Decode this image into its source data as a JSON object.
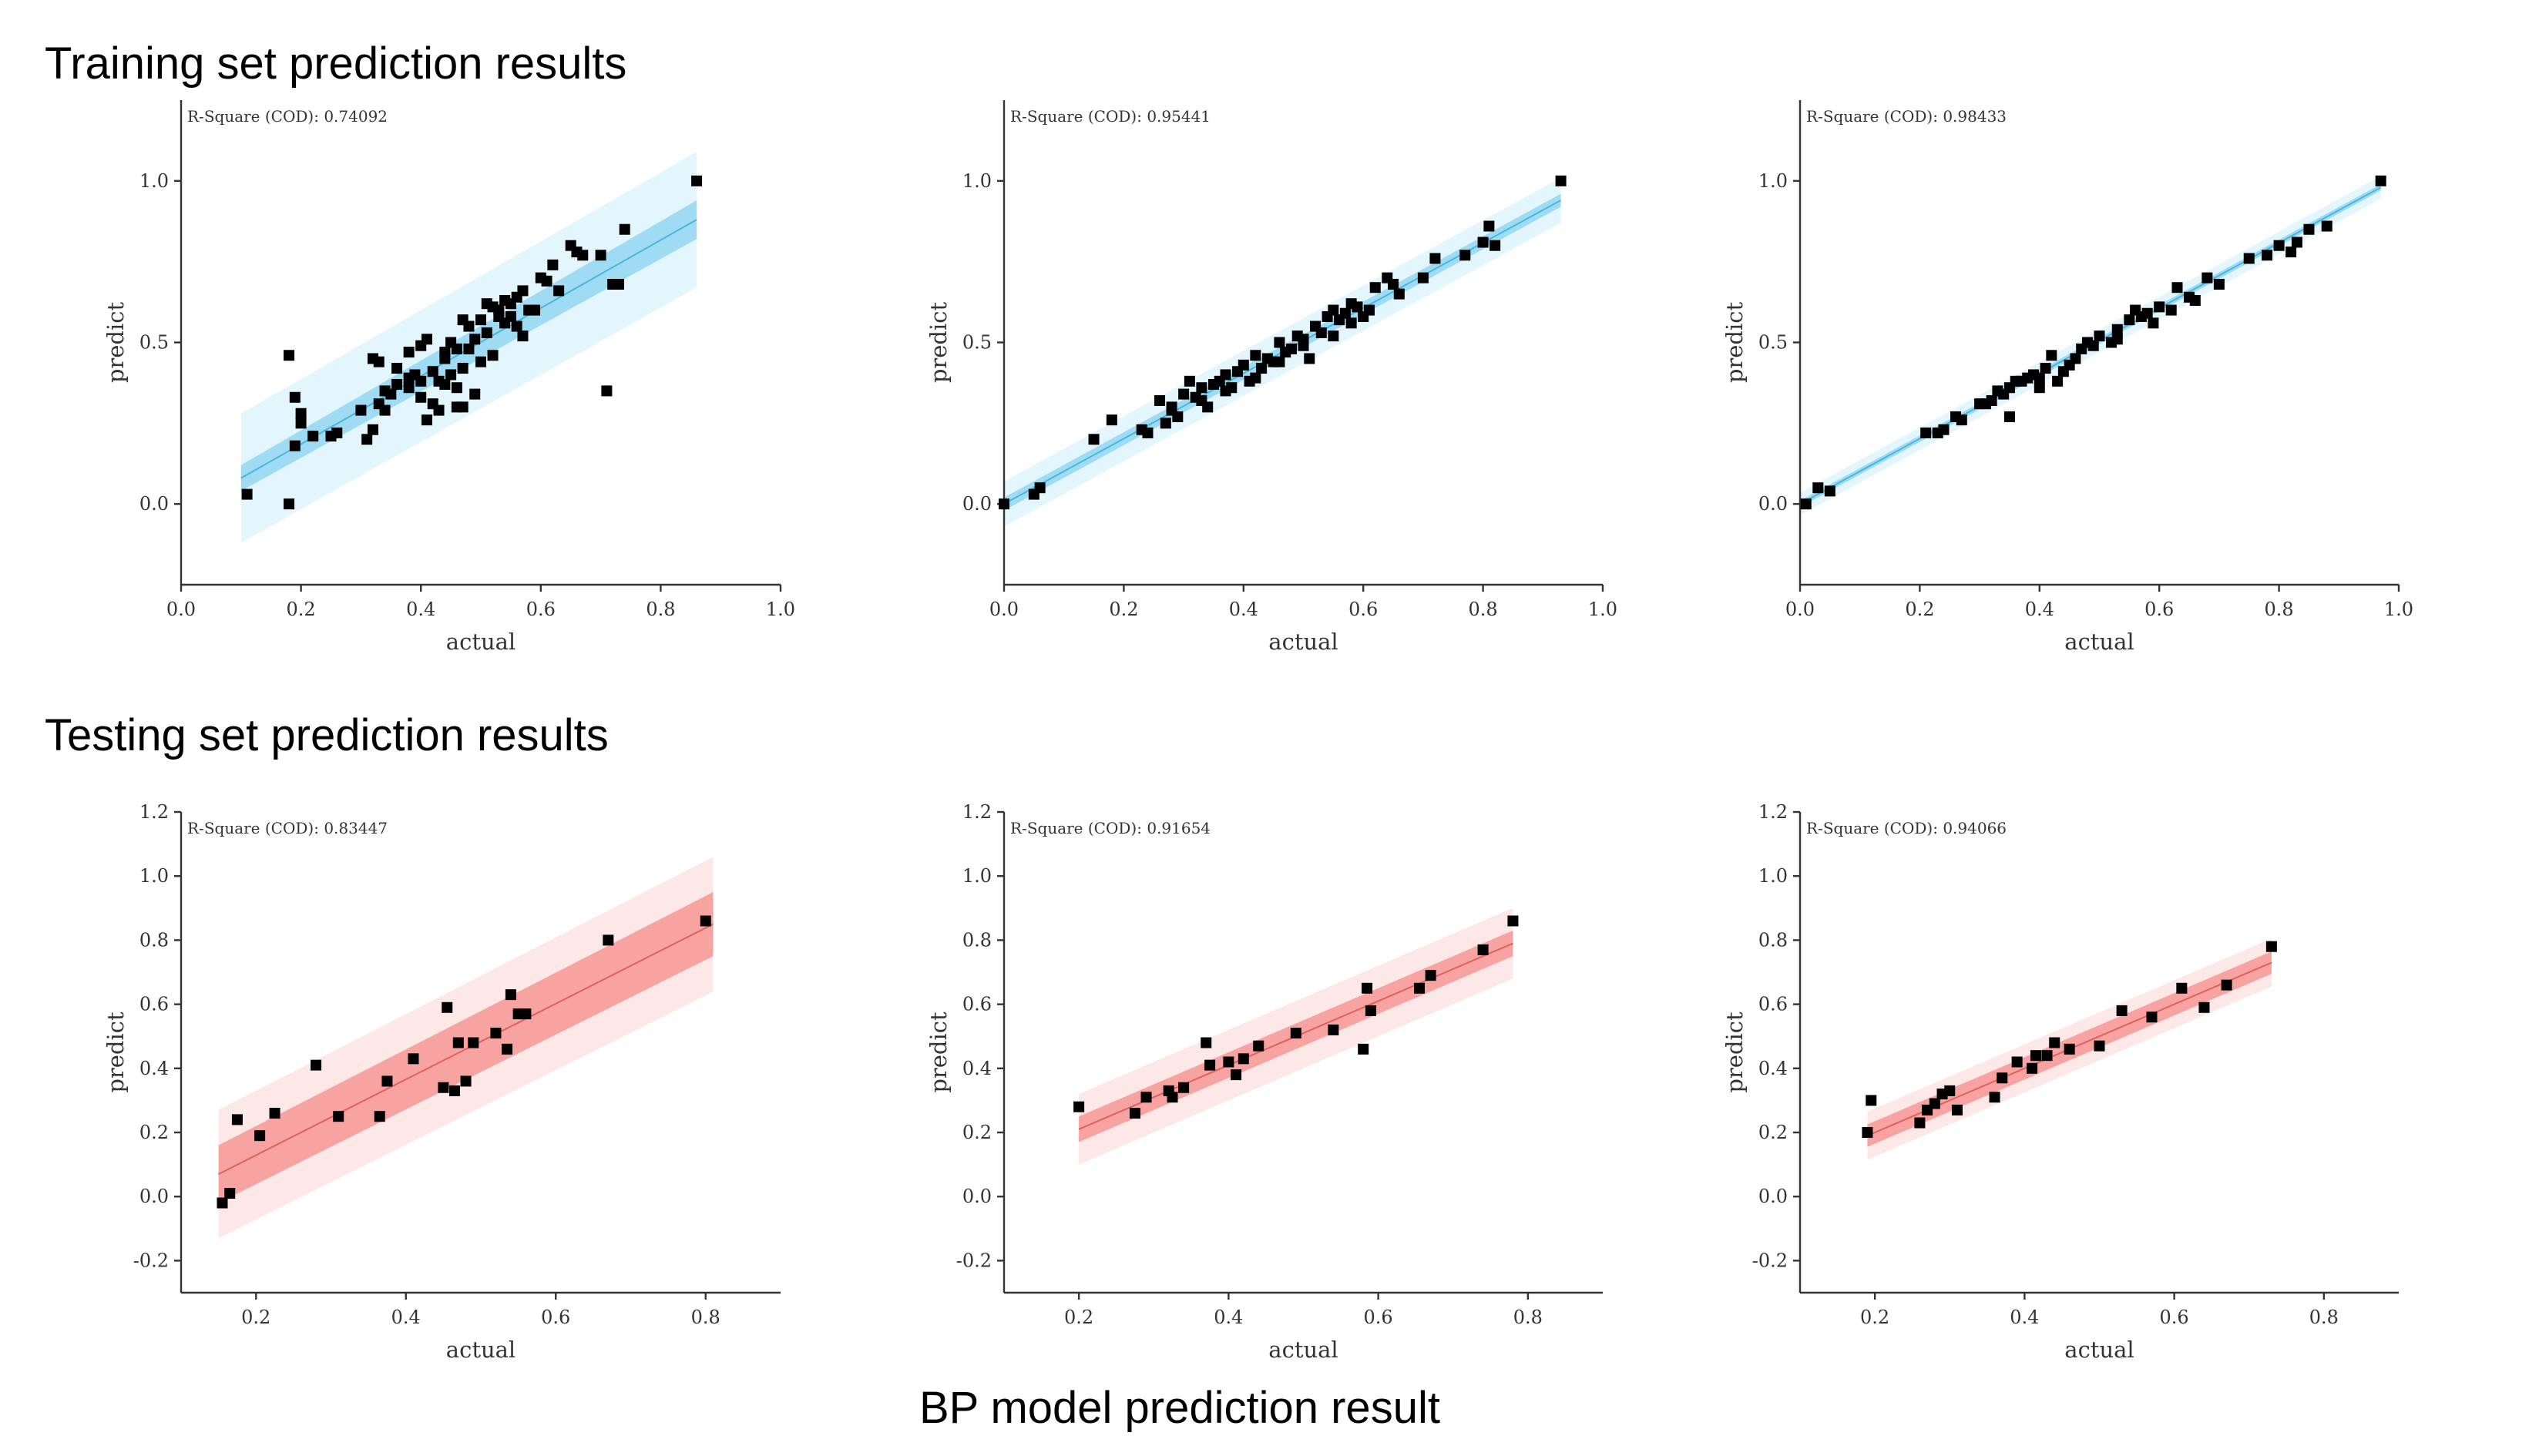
{
  "figure": {
    "section_titles": [
      "Training set prediction results",
      "Testing set prediction results"
    ],
    "caption": "BP model  prediction result"
  },
  "colors": {
    "train_band_outer": "#e3f5fd",
    "train_band_inner": "#9fdcf3",
    "train_line": "#49b6de",
    "test_band_outer": "#fde8e8",
    "test_band_inner": "#f7a3a1",
    "test_line": "#e0605c",
    "point": "#000000"
  },
  "chart_data": [
    {
      "type": "scatter",
      "set": "train",
      "title": "",
      "annotation": "R-Square (COD): 0.74092",
      "xlabel": "actual",
      "ylabel": "predict",
      "xlim": [
        0,
        1
      ],
      "ylim": [
        -0.25,
        1.25
      ],
      "xticks": [
        "0.0",
        "0.2",
        "0.4",
        "0.6",
        "0.8",
        "1.0"
      ],
      "yticks": [
        "0.0",
        "0.5",
        "1.0"
      ],
      "fit": {
        "x": [
          0.1,
          0.86
        ],
        "y": [
          0.08,
          0.88
        ],
        "inner": [
          0.04,
          0.06
        ],
        "outer": [
          0.2,
          0.21
        ]
      },
      "x": [
        0.11,
        0.18,
        0.18,
        0.19,
        0.2,
        0.2,
        0.19,
        0.22,
        0.25,
        0.26,
        0.31,
        0.32,
        0.33,
        0.34,
        0.35,
        0.36,
        0.32,
        0.33,
        0.38,
        0.39,
        0.4,
        0.41,
        0.42,
        0.43,
        0.44,
        0.45,
        0.46,
        0.47,
        0.48,
        0.49,
        0.5,
        0.51,
        0.52,
        0.53,
        0.54,
        0.55,
        0.56,
        0.57,
        0.58,
        0.38,
        0.4,
        0.41,
        0.43,
        0.45,
        0.46,
        0.47,
        0.49,
        0.5,
        0.52,
        0.54,
        0.55,
        0.57,
        0.59,
        0.6,
        0.61,
        0.62,
        0.63,
        0.65,
        0.66,
        0.67,
        0.7,
        0.71,
        0.72,
        0.73,
        0.74,
        0.86,
        0.36,
        0.4,
        0.44,
        0.46,
        0.48,
        0.42,
        0.38,
        0.34,
        0.3,
        0.53,
        0.56,
        0.44,
        0.47,
        0.51
      ],
      "y": [
        0.03,
        0.46,
        0.0,
        0.18,
        0.25,
        0.28,
        0.33,
        0.21,
        0.21,
        0.22,
        0.2,
        0.23,
        0.31,
        0.29,
        0.34,
        0.37,
        0.45,
        0.44,
        0.36,
        0.4,
        0.38,
        0.26,
        0.31,
        0.29,
        0.45,
        0.5,
        0.48,
        0.42,
        0.55,
        0.51,
        0.57,
        0.53,
        0.61,
        0.58,
        0.63,
        0.62,
        0.64,
        0.66,
        0.6,
        0.47,
        0.49,
        0.51,
        0.38,
        0.4,
        0.36,
        0.3,
        0.34,
        0.44,
        0.46,
        0.56,
        0.58,
        0.52,
        0.6,
        0.7,
        0.69,
        0.74,
        0.66,
        0.8,
        0.78,
        0.77,
        0.77,
        0.35,
        0.68,
        0.68,
        0.85,
        1.0,
        0.42,
        0.33,
        0.37,
        0.3,
        0.48,
        0.41,
        0.39,
        0.35,
        0.29,
        0.6,
        0.55,
        0.47,
        0.57,
        0.62
      ]
    },
    {
      "type": "scatter",
      "set": "train",
      "title": "",
      "annotation": "R-Square (COD): 0.95441",
      "xlabel": "actual",
      "ylabel": "predict",
      "xlim": [
        0,
        1
      ],
      "ylim": [
        -0.25,
        1.25
      ],
      "xticks": [
        "0.0",
        "0.2",
        "0.4",
        "0.6",
        "0.8",
        "1.0"
      ],
      "yticks": [
        "0.0",
        "0.5",
        "1.0"
      ],
      "fit": {
        "x": [
          0,
          0.93
        ],
        "y": [
          0.0,
          0.94
        ],
        "inner": [
          0.02,
          0.02
        ],
        "outer": [
          0.07,
          0.07
        ]
      },
      "x": [
        0.0,
        0.05,
        0.06,
        0.15,
        0.18,
        0.23,
        0.24,
        0.26,
        0.27,
        0.28,
        0.29,
        0.3,
        0.31,
        0.32,
        0.33,
        0.34,
        0.35,
        0.36,
        0.37,
        0.38,
        0.39,
        0.4,
        0.41,
        0.42,
        0.43,
        0.44,
        0.45,
        0.46,
        0.47,
        0.48,
        0.49,
        0.5,
        0.51,
        0.52,
        0.53,
        0.54,
        0.55,
        0.56,
        0.57,
        0.58,
        0.59,
        0.6,
        0.61,
        0.62,
        0.64,
        0.65,
        0.66,
        0.7,
        0.72,
        0.77,
        0.8,
        0.81,
        0.82,
        0.93,
        0.28,
        0.33,
        0.37,
        0.42,
        0.46,
        0.5,
        0.55,
        0.58
      ],
      "y": [
        0.0,
        0.03,
        0.05,
        0.2,
        0.26,
        0.23,
        0.22,
        0.32,
        0.25,
        0.3,
        0.27,
        0.34,
        0.38,
        0.33,
        0.36,
        0.3,
        0.37,
        0.38,
        0.4,
        0.36,
        0.41,
        0.43,
        0.38,
        0.46,
        0.42,
        0.45,
        0.44,
        0.5,
        0.47,
        0.48,
        0.52,
        0.51,
        0.45,
        0.55,
        0.53,
        0.58,
        0.6,
        0.57,
        0.59,
        0.62,
        0.61,
        0.58,
        0.6,
        0.67,
        0.7,
        0.68,
        0.65,
        0.7,
        0.76,
        0.77,
        0.81,
        0.86,
        0.8,
        1.0,
        0.29,
        0.32,
        0.35,
        0.39,
        0.44,
        0.49,
        0.52,
        0.56
      ]
    },
    {
      "type": "scatter",
      "set": "train",
      "title": "",
      "annotation": "R-Square (COD): 0.98433",
      "xlabel": "actual",
      "ylabel": "predict",
      "xlim": [
        0,
        1
      ],
      "ylim": [
        -0.25,
        1.25
      ],
      "xticks": [
        "0.0",
        "0.2",
        "0.4",
        "0.6",
        "0.8",
        "1.0"
      ],
      "yticks": [
        "0.0",
        "0.5",
        "1.0"
      ],
      "fit": {
        "x": [
          0,
          0.97
        ],
        "y": [
          0.0,
          0.98
        ],
        "inner": [
          0.01,
          0.01
        ],
        "outer": [
          0.035,
          0.035
        ]
      },
      "x": [
        0.01,
        0.03,
        0.05,
        0.21,
        0.23,
        0.24,
        0.26,
        0.27,
        0.3,
        0.31,
        0.32,
        0.33,
        0.34,
        0.35,
        0.36,
        0.37,
        0.38,
        0.39,
        0.4,
        0.41,
        0.42,
        0.43,
        0.45,
        0.46,
        0.47,
        0.48,
        0.49,
        0.5,
        0.52,
        0.53,
        0.55,
        0.56,
        0.57,
        0.58,
        0.59,
        0.6,
        0.62,
        0.63,
        0.65,
        0.66,
        0.68,
        0.7,
        0.75,
        0.78,
        0.8,
        0.82,
        0.83,
        0.85,
        0.88,
        0.97,
        0.35,
        0.4,
        0.44,
        0.53
      ],
      "y": [
        0.0,
        0.05,
        0.04,
        0.22,
        0.22,
        0.23,
        0.27,
        0.26,
        0.31,
        0.31,
        0.32,
        0.35,
        0.34,
        0.36,
        0.38,
        0.38,
        0.39,
        0.4,
        0.39,
        0.42,
        0.46,
        0.38,
        0.43,
        0.45,
        0.48,
        0.5,
        0.49,
        0.52,
        0.5,
        0.54,
        0.57,
        0.6,
        0.58,
        0.59,
        0.56,
        0.61,
        0.6,
        0.67,
        0.64,
        0.63,
        0.7,
        0.68,
        0.76,
        0.77,
        0.8,
        0.78,
        0.81,
        0.85,
        0.86,
        1.0,
        0.27,
        0.36,
        0.41,
        0.51
      ]
    },
    {
      "type": "scatter",
      "set": "test",
      "title": "",
      "annotation": "R-Square (COD): 0.83447",
      "xlabel": "actual",
      "ylabel": "predict",
      "xlim": [
        0.1,
        0.9
      ],
      "ylim": [
        -0.3,
        1.2
      ],
      "xticks": [
        "0.2",
        "0.4",
        "0.6",
        "0.8"
      ],
      "yticks": [
        "-0.2",
        "0.0",
        "0.2",
        "0.4",
        "0.6",
        "0.8",
        "1.0",
        "1.2"
      ],
      "fit": {
        "x": [
          0.15,
          0.81
        ],
        "y": [
          0.07,
          0.85
        ],
        "inner": [
          0.09,
          0.1
        ],
        "outer": [
          0.2,
          0.21
        ]
      },
      "x": [
        0.155,
        0.165,
        0.175,
        0.205,
        0.225,
        0.28,
        0.31,
        0.365,
        0.375,
        0.41,
        0.45,
        0.455,
        0.465,
        0.47,
        0.48,
        0.49,
        0.52,
        0.535,
        0.54,
        0.55,
        0.56,
        0.67,
        0.8
      ],
      "y": [
        -0.02,
        0.01,
        0.24,
        0.19,
        0.26,
        0.41,
        0.25,
        0.25,
        0.36,
        0.43,
        0.34,
        0.59,
        0.33,
        0.48,
        0.36,
        0.48,
        0.51,
        0.46,
        0.63,
        0.57,
        0.57,
        0.8,
        0.86
      ]
    },
    {
      "type": "scatter",
      "set": "test",
      "title": "",
      "annotation": "R-Square (COD): 0.91654",
      "xlabel": "actual",
      "ylabel": "predict",
      "xlim": [
        0.1,
        0.9
      ],
      "ylim": [
        -0.3,
        1.2
      ],
      "xticks": [
        "0.2",
        "0.4",
        "0.6",
        "0.8"
      ],
      "yticks": [
        "-0.2",
        "0.0",
        "0.2",
        "0.4",
        "0.6",
        "0.8",
        "1.0",
        "1.2"
      ],
      "fit": {
        "x": [
          0.2,
          0.78
        ],
        "y": [
          0.21,
          0.79
        ],
        "inner": [
          0.04,
          0.04
        ],
        "outer": [
          0.11,
          0.11
        ]
      },
      "x": [
        0.2,
        0.275,
        0.29,
        0.32,
        0.325,
        0.34,
        0.37,
        0.375,
        0.4,
        0.41,
        0.42,
        0.44,
        0.49,
        0.54,
        0.58,
        0.585,
        0.59,
        0.655,
        0.67,
        0.74,
        0.78
      ],
      "y": [
        0.28,
        0.26,
        0.31,
        0.33,
        0.31,
        0.34,
        0.48,
        0.41,
        0.42,
        0.38,
        0.43,
        0.47,
        0.51,
        0.52,
        0.46,
        0.65,
        0.58,
        0.65,
        0.69,
        0.77,
        0.86
      ]
    },
    {
      "type": "scatter",
      "set": "test",
      "title": "",
      "annotation": "R-Square (COD): 0.94066",
      "xlabel": "actual",
      "ylabel": "predict",
      "xlim": [
        0.1,
        0.9
      ],
      "ylim": [
        -0.3,
        1.2
      ],
      "xticks": [
        "0.2",
        "0.4",
        "0.6",
        "0.8"
      ],
      "yticks": [
        "-0.2",
        "0.0",
        "0.2",
        "0.4",
        "0.6",
        "0.8",
        "1.0",
        "1.2"
      ],
      "fit": {
        "x": [
          0.19,
          0.73
        ],
        "y": [
          0.19,
          0.73
        ],
        "inner": [
          0.035,
          0.035
        ],
        "outer": [
          0.075,
          0.075
        ]
      },
      "x": [
        0.19,
        0.195,
        0.26,
        0.27,
        0.28,
        0.29,
        0.3,
        0.31,
        0.36,
        0.37,
        0.39,
        0.41,
        0.415,
        0.43,
        0.44,
        0.46,
        0.5,
        0.53,
        0.57,
        0.61,
        0.64,
        0.67,
        0.73
      ],
      "y": [
        0.2,
        0.3,
        0.23,
        0.27,
        0.29,
        0.32,
        0.33,
        0.27,
        0.31,
        0.37,
        0.42,
        0.4,
        0.44,
        0.44,
        0.48,
        0.46,
        0.47,
        0.58,
        0.56,
        0.65,
        0.59,
        0.66,
        0.78
      ]
    }
  ]
}
